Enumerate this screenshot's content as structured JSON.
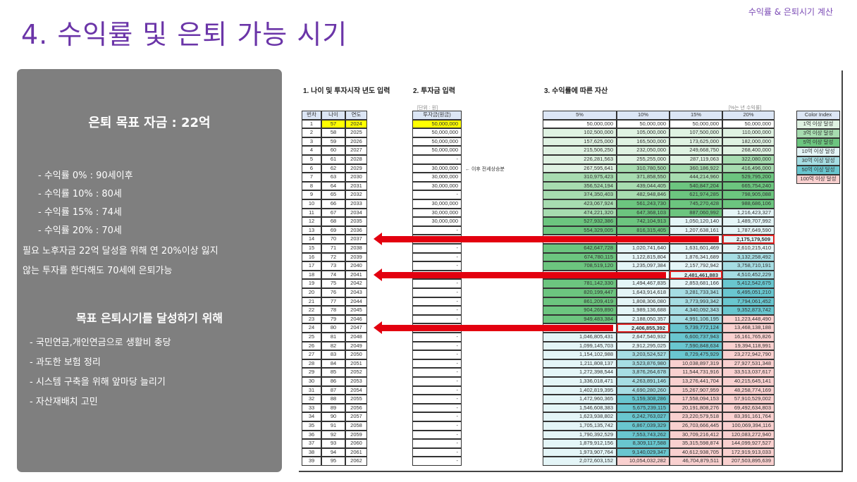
{
  "slide": {
    "title": "4. 수익률 및 은퇴 가능 시기",
    "corner_label": "수익률 & 은퇴시기 계산"
  },
  "panel": {
    "heading1": "은퇴 목표 자금 : 22억",
    "lines1": [
      "- 수익률   0% : 90세이후",
      "- 수익률 10% : 80세",
      "- 수익률 15% : 74세",
      "- 수익률 20% : 70세",
      "필요 노후자금 22억 달성을 위해 연 20%이상 잃지",
      "않는 투자를 한다해도   70세에 은퇴가능"
    ],
    "heading2": "목표 은퇴시기를 달성하기 위해",
    "lines2": [
      "- 국민연금,개인연금으로 생활비  충당",
      "- 과도한 보험 정리",
      "- 시스템 구축을  위해 앞마당 늘리기",
      "- 자산재배치 고민"
    ]
  },
  "sheet": {
    "section1": "1. 나이 및 투자시작 년도 입력",
    "section2": "2. 투자금 입력",
    "section3": "3. 수익률에 따른 자산",
    "unit_label": "[단위 : 원]",
    "rate_label": "[%는 년 수익률]",
    "headers": {
      "no": "번차",
      "age": "나이",
      "year": "연도",
      "invest": "투자금(원금)",
      "rates": [
        "5%",
        "10%",
        "15%",
        "20%"
      ]
    },
    "invest_note": "← 이후 전세상승분",
    "input_highlight": "#ffff00",
    "rows": [
      [
        "1",
        "57",
        "2024",
        "50,000,000",
        "50,000,000",
        "50,000,000",
        "50,000,000",
        "50,000,000"
      ],
      [
        "2",
        "58",
        "2025",
        "50,000,000",
        "102,500,000",
        "105,000,000",
        "107,500,000",
        "110,000,000"
      ],
      [
        "3",
        "59",
        "2026",
        "50,000,000",
        "157,625,000",
        "165,500,000",
        "173,625,000",
        "182,000,000"
      ],
      [
        "4",
        "60",
        "2027",
        "50,000,000",
        "215,506,250",
        "232,050,000",
        "249,668,750",
        "268,400,000"
      ],
      [
        "5",
        "61",
        "2028",
        "-",
        "226,281,563",
        "255,255,000",
        "287,119,063",
        "322,080,000"
      ],
      [
        "6",
        "62",
        "2029",
        "30,000,000",
        "267,595,641",
        "310,780,500",
        "360,186,922",
        "416,496,000"
      ],
      [
        "7",
        "63",
        "2030",
        "30,000,000",
        "310,975,423",
        "371,858,550",
        "444,214,960",
        "529,795,200"
      ],
      [
        "8",
        "64",
        "2031",
        "30,000,000",
        "356,524,194",
        "439,044,405",
        "540,847,204",
        "665,754,240"
      ],
      [
        "9",
        "65",
        "2032",
        "-",
        "374,350,403",
        "482,948,846",
        "621,974,285",
        "798,905,088"
      ],
      [
        "10",
        "66",
        "2033",
        "30,000,000",
        "423,067,924",
        "561,243,730",
        "745,270,428",
        "988,686,106"
      ],
      [
        "11",
        "67",
        "2034",
        "30,000,000",
        "474,221,320",
        "647,368,103",
        "887,060,992",
        "1,216,423,327"
      ],
      [
        "12",
        "68",
        "2035",
        "30,000,000",
        "527,932,386",
        "742,104,913",
        "1,050,120,140",
        "1,489,707,992"
      ],
      [
        "13",
        "69",
        "2036",
        "-",
        "554,329,005",
        "816,315,405",
        "1,207,638,161",
        "1,787,649,590"
      ],
      [
        "14",
        "70",
        "2037",
        null,
        null,
        null,
        null,
        "2,175,179,509"
      ],
      [
        "15",
        "71",
        "2038",
        "-",
        "642,647,728",
        "1,020,741,640",
        "1,631,601,469",
        "2,610,215,410"
      ],
      [
        "16",
        "72",
        "2039",
        "-",
        "674,780,115",
        "1,122,815,804",
        "1,876,341,689",
        "3,132,258,492"
      ],
      [
        "17",
        "73",
        "2040",
        "-",
        "708,519,120",
        "1,235,097,384",
        "2,157,792,942",
        "3,758,710,191"
      ],
      [
        "18",
        "74",
        "2041",
        null,
        null,
        null,
        "2,481,461,883",
        "4,510,452,229"
      ],
      [
        "19",
        "75",
        "2042",
        "-",
        "781,142,330",
        "1,494,467,835",
        "2,853,681,166",
        "5,412,542,675"
      ],
      [
        "20",
        "76",
        "2043",
        "-",
        "820,199,447",
        "1,643,914,618",
        "3,281,733,341",
        "6,495,051,210"
      ],
      [
        "21",
        "77",
        "2044",
        "-",
        "861,209,419",
        "1,808,306,080",
        "3,773,993,342",
        "7,794,061,452"
      ],
      [
        "22",
        "78",
        "2045",
        "-",
        "904,269,890",
        "1,989,136,688",
        "4,340,092,343",
        "9,352,873,742"
      ],
      [
        "23",
        "79",
        "2046",
        "-",
        "949,483,384",
        "2,188,050,357",
        "4,991,106,195",
        "11,223,448,490"
      ],
      [
        "24",
        "80",
        "2047",
        null,
        null,
        "2,406,855,392",
        "5,739,772,124",
        "13,468,138,188"
      ],
      [
        "25",
        "81",
        "2048",
        "-",
        "1,046,805,431",
        "2,647,540,932",
        "6,600,737,943",
        "16,161,765,826"
      ],
      [
        "26",
        "82",
        "2049",
        "-",
        "1,099,145,703",
        "2,912,295,025",
        "7,590,848,634",
        "19,394,118,991"
      ],
      [
        "27",
        "83",
        "2050",
        "-",
        "1,154,102,988",
        "3,203,524,527",
        "8,729,475,929",
        "23,272,942,790"
      ],
      [
        "28",
        "84",
        "2051",
        "-",
        "1,211,808,137",
        "3,523,876,980",
        "10,038,897,319",
        "27,927,531,348"
      ],
      [
        "29",
        "85",
        "2052",
        "-",
        "1,272,398,544",
        "3,876,264,678",
        "11,544,731,916",
        "33,513,037,617"
      ],
      [
        "30",
        "86",
        "2053",
        "-",
        "1,336,018,471",
        "4,263,891,146",
        "13,276,441,704",
        "40,215,645,141"
      ],
      [
        "31",
        "87",
        "2054",
        "-",
        "1,402,819,395",
        "4,690,280,260",
        "15,267,907,959",
        "48,258,774,169"
      ],
      [
        "32",
        "88",
        "2055",
        "-",
        "1,472,960,365",
        "5,159,308,286",
        "17,558,094,153",
        "57,910,529,002"
      ],
      [
        "33",
        "89",
        "2056",
        "-",
        "1,546,608,383",
        "5,675,239,115",
        "20,191,808,276",
        "69,492,634,803"
      ],
      [
        "34",
        "90",
        "2057",
        "-",
        "1,623,938,802",
        "6,242,763,027",
        "23,220,579,518",
        "83,391,161,764"
      ],
      [
        "35",
        "91",
        "2058",
        "-",
        "1,705,135,742",
        "6,867,039,329",
        "26,703,666,445",
        "100,069,394,116"
      ],
      [
        "36",
        "92",
        "2059",
        "-",
        "1,790,392,529",
        "7,553,743,262",
        "30,709,216,412",
        "120,083,272,940"
      ],
      [
        "37",
        "93",
        "2060",
        "-",
        "1,879,912,156",
        "8,309,117,588",
        "35,315,598,874",
        "144,099,927,527"
      ],
      [
        "38",
        "94",
        "2061",
        "-",
        "1,973,907,764",
        "9,140,029,347",
        "40,612,938,705",
        "172,919,913,033"
      ],
      [
        "39",
        "95",
        "2062",
        "-",
        "2,072,603,152",
        "10,054,032,282",
        "46,704,879,511",
        "207,503,895,639"
      ]
    ],
    "highlighted": [
      {
        "row": 14,
        "rate": "20%"
      },
      {
        "row": 18,
        "rate": "15%"
      },
      {
        "row": 24,
        "rate": "10%"
      }
    ],
    "color_index": {
      "title": "Color Index",
      "items": [
        {
          "label": "1억 이상 달성",
          "color": "#dff2e2"
        },
        {
          "label": "3억 이상 달성",
          "color": "#a7dcb0"
        },
        {
          "label": "5억 이상 달성",
          "color": "#6cc57f"
        },
        {
          "label": "10억 이상 달성",
          "color": "#e4f5f7"
        },
        {
          "label": "30억 이상 달성",
          "color": "#a6dde3"
        },
        {
          "label": "50억 이상 달성",
          "color": "#69c6cf"
        },
        {
          "label": "100억 이상 달성",
          "color": "#f9d0cf"
        }
      ]
    },
    "arrow_color": "#e3000f"
  }
}
